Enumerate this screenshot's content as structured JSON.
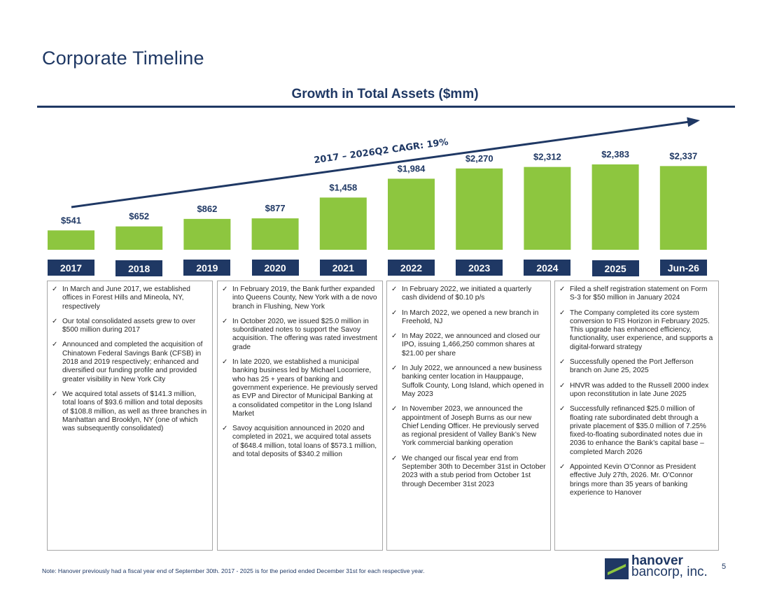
{
  "page": {
    "title": "Corporate Timeline",
    "footnote": "Note: Hanover previously had a fiscal year end of September 30th. 2017 - 2025 is for the period ended December 31st for each respective year.",
    "page_number": "5"
  },
  "logo": {
    "line1": "hanover",
    "line2": "bancorp, inc."
  },
  "colors": {
    "navy": "#1f3864",
    "bar_green": "#8dc63f"
  },
  "chart_data": {
    "type": "bar",
    "title": "Growth in Total Assets ($mm)",
    "categories": [
      "2017",
      "2018",
      "2019",
      "2020",
      "2021",
      "2022",
      "2023",
      "2024",
      "2025",
      "Jun-26"
    ],
    "values": [
      541,
      652,
      862,
      877,
      1458,
      1984,
      2270,
      2312,
      2383,
      2337
    ],
    "value_labels": [
      "$541",
      "$652",
      "$862",
      "$877",
      "$1,458",
      "$1,984",
      "$2,270",
      "$2,312",
      "$2,383",
      "$2,337"
    ],
    "annotation": "2017 – 2026Q2 CAGR: 19%",
    "ylim": [
      0,
      2383
    ]
  },
  "panels": [
    {
      "items": [
        "In March and June 2017, we established offices in Forest Hills and Mineola, NY, respectively",
        "Our total consolidated assets grew to over $500 million during 2017",
        "Announced and completed the acquisition of Chinatown Federal Savings Bank (CFSB) in 2018 and 2019 respectively; enhanced and diversified our funding profile and provided greater visibility in New York City",
        "We acquired total assets of $141.3 million, total loans of $93.6 million and total deposits of $108.8 million, as well as three branches in Manhattan and Brooklyn, NY (one of which was subsequently consolidated)"
      ]
    },
    {
      "items": [
        "In February 2019, the Bank further expanded into Queens County, New York with a de novo branch in Flushing, New York",
        "In October 2020, we issued $25.0 million in subordinated notes to support the Savoy acquisition. The offering was rated investment grade",
        "In late 2020, we established a municipal banking business led by Michael Locorriere, who has 25 + years of banking and government experience. He previously served as EVP and Director of Municipal Banking at a consolidated competitor in the Long Island Market",
        "Savoy acquisition announced in 2020 and completed in 2021, we acquired total assets of $648.4 million, total loans of $573.1 million, and total deposits of $340.2 million"
      ]
    },
    {
      "items": [
        "In February 2022, we initiated a quarterly cash dividend of $0.10 p/s",
        "In March 2022, we opened a new branch in Freehold, NJ",
        "In May 2022, we announced and closed our IPO, issuing 1,466,250 common shares at $21.00 per share",
        "In July 2022, we announced a new business banking center location in Hauppauge, Suffolk County, Long Island, which opened in May 2023",
        "In November 2023, we announced the appointment of Joseph Burns as our new Chief Lending Officer. He previously served as regional president of Valley Bank’s New York commercial banking operation",
        "We changed our fiscal year end from September 30th to December 31st in October 2023 with a stub period from October 1st through December 31st 2023"
      ]
    },
    {
      "items": [
        "Filed a shelf registration statement on Form S-3 for $50 million in January 2024",
        "The Company completed its core system conversion to FIS Horizon in February 2025. This upgrade has enhanced efficiency, functionality, user experience, and supports a digital-forward strategy",
        "Successfully opened the Port Jefferson branch on June 25, 2025",
        "HNVR was added to the Russell 2000 index upon reconstitution in late June 2025",
        "Successfully refinanced $25.0 million of floating rate subordinated debt through a private placement of $35.0 million of 7.25% fixed-to-floating subordinated notes due in 2036 to enhance the Bank’s capital base – completed March 2026",
        "Appointed Kevin O’Connor as President effective July 27th, 2026. Mr. O’Connor brings more than 35 years of banking experience to Hanover"
      ]
    }
  ]
}
